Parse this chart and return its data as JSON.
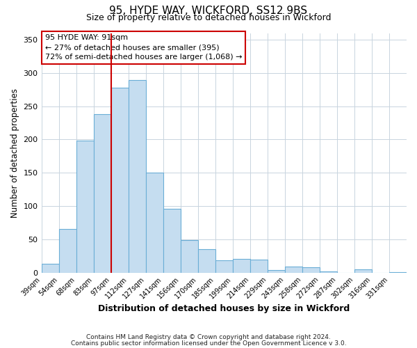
{
  "title": "95, HYDE WAY, WICKFORD, SS12 9BS",
  "subtitle": "Size of property relative to detached houses in Wickford",
  "xlabel": "Distribution of detached houses by size in Wickford",
  "ylabel": "Number of detached properties",
  "bar_labels": [
    "39sqm",
    "54sqm",
    "68sqm",
    "83sqm",
    "97sqm",
    "112sqm",
    "127sqm",
    "141sqm",
    "156sqm",
    "170sqm",
    "185sqm",
    "199sqm",
    "214sqm",
    "229sqm",
    "243sqm",
    "258sqm",
    "272sqm",
    "287sqm",
    "302sqm",
    "316sqm",
    "331sqm"
  ],
  "bar_values": [
    13,
    65,
    198,
    238,
    278,
    289,
    150,
    96,
    49,
    35,
    18,
    20,
    19,
    4,
    9,
    8,
    2,
    0,
    5,
    0,
    1
  ],
  "bar_color": "#c5ddf0",
  "bar_edge_color": "#6aaed6",
  "annotation_title": "95 HYDE WAY: 91sqm",
  "annotation_line1": "← 27% of detached houses are smaller (395)",
  "annotation_line2": "72% of semi-detached houses are larger (1,068) →",
  "annotation_box_color": "#ffffff",
  "annotation_border_color": "#cc0000",
  "property_line_color": "#cc0000",
  "ylim": [
    0,
    360
  ],
  "yticks": [
    0,
    50,
    100,
    150,
    200,
    250,
    300,
    350
  ],
  "footer1": "Contains HM Land Registry data © Crown copyright and database right 2024.",
  "footer2": "Contains public sector information licensed under the Open Government Licence v 3.0.",
  "background_color": "#ffffff",
  "grid_color": "#c8d4de"
}
